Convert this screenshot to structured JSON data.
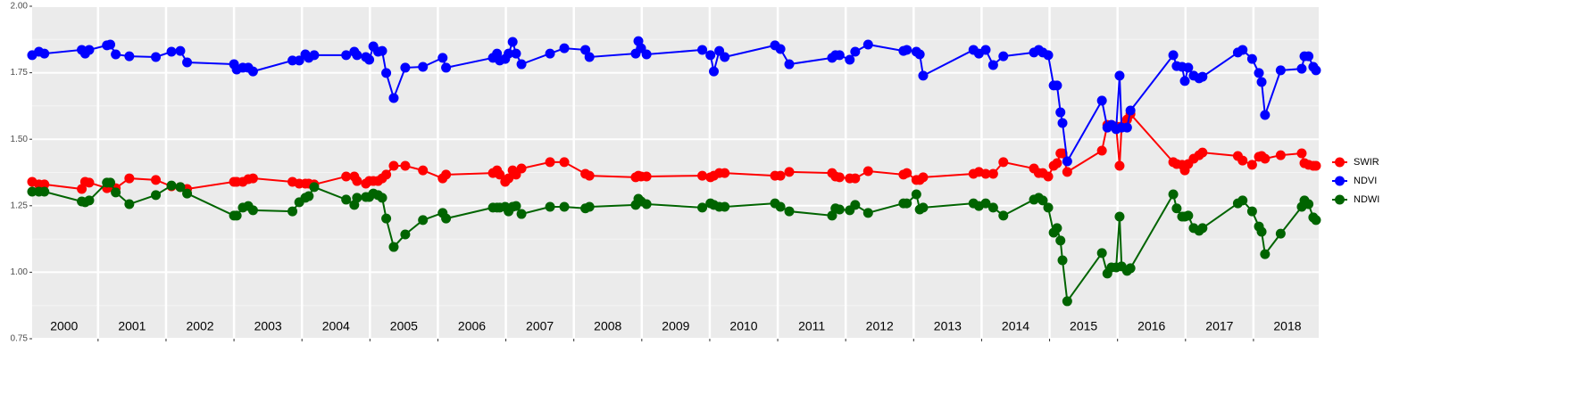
{
  "chart_data": {
    "type": "line",
    "x": [
      2000.03,
      2000.13,
      2000.21,
      2000.76,
      2000.81,
      2000.87,
      2001.13,
      2001.18,
      2001.26,
      2001.46,
      2001.85,
      2002.08,
      2002.21,
      2002.31,
      2003.0,
      2003.04,
      2003.13,
      2003.21,
      2003.28,
      2003.86,
      2003.96,
      2004.05,
      2004.1,
      2004.18,
      2004.65,
      2004.77,
      2004.81,
      2004.94,
      2004.99,
      2005.05,
      2005.12,
      2005.18,
      2005.24,
      2005.35,
      2005.52,
      2005.78,
      2006.07,
      2006.12,
      2006.81,
      2006.87,
      2006.91,
      2006.99,
      2007.04,
      2007.1,
      2007.15,
      2007.23,
      2007.65,
      2007.86,
      2008.17,
      2008.23,
      2008.91,
      2008.95,
      2008.99,
      2009.07,
      2009.89,
      2010.01,
      2010.06,
      2010.14,
      2010.22,
      2010.96,
      2011.04,
      2011.17,
      2011.8,
      2011.85,
      2011.91,
      2012.06,
      2012.14,
      2012.33,
      2012.85,
      2012.9,
      2013.04,
      2013.09,
      2013.14,
      2013.88,
      2013.96,
      2014.06,
      2014.17,
      2014.32,
      2014.77,
      2014.84,
      2014.9,
      2014.98,
      2015.06,
      2015.11,
      2015.16,
      2015.19,
      2015.26,
      2015.77,
      2015.85,
      2015.91,
      2015.98,
      2016.03,
      2016.06,
      2016.14,
      2016.19,
      2016.82,
      2016.87,
      2016.95,
      2016.99,
      2017.04,
      2017.12,
      2017.2,
      2017.25,
      2017.77,
      2017.84,
      2017.98,
      2018.08,
      2018.12,
      2018.17,
      2018.4,
      2018.71,
      2018.75,
      2018.81,
      2018.88,
      2018.92
    ],
    "series": [
      {
        "name": "SWIR",
        "color": "#ff0000",
        "values": [
          1.34,
          1.33,
          1.33,
          1.313,
          1.34,
          1.337,
          1.316,
          1.32,
          1.316,
          1.353,
          1.347,
          1.323,
          1.32,
          1.313,
          1.34,
          1.34,
          1.34,
          1.35,
          1.353,
          1.34,
          1.333,
          1.333,
          1.333,
          1.33,
          1.36,
          1.36,
          1.343,
          1.333,
          1.343,
          1.343,
          1.343,
          1.353,
          1.367,
          1.4,
          1.4,
          1.383,
          1.353,
          1.367,
          1.373,
          1.383,
          1.367,
          1.34,
          1.353,
          1.383,
          1.367,
          1.39,
          1.414,
          1.414,
          1.37,
          1.363,
          1.357,
          1.363,
          1.36,
          1.36,
          1.363,
          1.357,
          1.363,
          1.373,
          1.373,
          1.363,
          1.363,
          1.377,
          1.373,
          1.36,
          1.357,
          1.353,
          1.353,
          1.38,
          1.367,
          1.373,
          1.347,
          1.347,
          1.357,
          1.37,
          1.377,
          1.37,
          1.37,
          1.414,
          1.39,
          1.373,
          1.373,
          1.36,
          1.4,
          1.41,
          1.447,
          1.447,
          1.377,
          1.457,
          1.554,
          1.554,
          1.548,
          1.4,
          1.548,
          1.574,
          1.595,
          1.414,
          1.407,
          1.404,
          1.383,
          1.407,
          1.427,
          1.44,
          1.45,
          1.437,
          1.42,
          1.404,
          1.434,
          1.437,
          1.427,
          1.44,
          1.447,
          1.41,
          1.404,
          1.4,
          1.4
        ]
      },
      {
        "name": "NDVI",
        "color": "#0000ff",
        "values": [
          1.816,
          1.829,
          1.822,
          1.836,
          1.822,
          1.836,
          1.853,
          1.856,
          1.819,
          1.812,
          1.809,
          1.829,
          1.832,
          1.789,
          1.782,
          1.762,
          1.769,
          1.769,
          1.755,
          1.796,
          1.796,
          1.819,
          1.806,
          1.816,
          1.816,
          1.829,
          1.816,
          1.809,
          1.799,
          1.849,
          1.829,
          1.832,
          1.749,
          1.655,
          1.769,
          1.772,
          1.806,
          1.769,
          1.806,
          1.822,
          1.796,
          1.802,
          1.822,
          1.866,
          1.822,
          1.782,
          1.822,
          1.842,
          1.836,
          1.809,
          1.822,
          1.869,
          1.842,
          1.819,
          1.836,
          1.816,
          1.755,
          1.832,
          1.809,
          1.853,
          1.839,
          1.782,
          1.806,
          1.816,
          1.816,
          1.799,
          1.829,
          1.856,
          1.832,
          1.836,
          1.829,
          1.819,
          1.739,
          1.836,
          1.822,
          1.836,
          1.779,
          1.812,
          1.826,
          1.836,
          1.826,
          1.816,
          1.702,
          1.702,
          1.601,
          1.561,
          1.417,
          1.645,
          1.544,
          1.554,
          1.538,
          1.739,
          1.544,
          1.544,
          1.608,
          1.816,
          1.775,
          1.772,
          1.719,
          1.769,
          1.739,
          1.729,
          1.735,
          1.826,
          1.836,
          1.802,
          1.749,
          1.715,
          1.591,
          1.759,
          1.765,
          1.812,
          1.812,
          1.772,
          1.759
        ]
      },
      {
        "name": "NDWI",
        "color": "#006400",
        "values": [
          1.303,
          1.303,
          1.303,
          1.266,
          1.263,
          1.27,
          1.337,
          1.337,
          1.3,
          1.256,
          1.29,
          1.326,
          1.32,
          1.296,
          1.213,
          1.213,
          1.243,
          1.249,
          1.233,
          1.229,
          1.263,
          1.28,
          1.286,
          1.32,
          1.273,
          1.253,
          1.28,
          1.283,
          1.283,
          1.296,
          1.29,
          1.28,
          1.202,
          1.095,
          1.142,
          1.196,
          1.223,
          1.202,
          1.243,
          1.243,
          1.243,
          1.246,
          1.229,
          1.246,
          1.249,
          1.219,
          1.246,
          1.246,
          1.24,
          1.246,
          1.253,
          1.276,
          1.266,
          1.256,
          1.243,
          1.259,
          1.253,
          1.246,
          1.246,
          1.259,
          1.246,
          1.229,
          1.213,
          1.24,
          1.236,
          1.233,
          1.253,
          1.223,
          1.259,
          1.259,
          1.293,
          1.236,
          1.243,
          1.259,
          1.249,
          1.259,
          1.243,
          1.213,
          1.273,
          1.28,
          1.27,
          1.243,
          1.149,
          1.166,
          1.119,
          1.045,
          0.891,
          1.072,
          0.995,
          1.018,
          1.018,
          1.209,
          1.022,
          1.005,
          1.015,
          1.293,
          1.24,
          1.209,
          1.209,
          1.213,
          1.166,
          1.156,
          1.166,
          1.259,
          1.27,
          1.229,
          1.172,
          1.152,
          1.068,
          1.145,
          1.246,
          1.27,
          1.256,
          1.206,
          1.196
        ]
      }
    ],
    "xlim": [
      2000.03,
      2018.96
    ],
    "xticks": [
      2001,
      2002,
      2003,
      2004,
      2005,
      2006,
      2007,
      2008,
      2009,
      2010,
      2011,
      2012,
      2013,
      2014,
      2015,
      2016,
      2017,
      2018
    ],
    "ylim": [
      0.75,
      2.0
    ],
    "yticks": [
      0.75,
      {
        "value": 1.0,
        "label": "1.00"
      },
      1.25,
      {
        "value": 1.5,
        "label": "1.50"
      },
      1.75,
      {
        "value": 2.0,
        "label": "2.00"
      }
    ],
    "annotations": [
      {
        "x": 2000.5,
        "text": "2000"
      },
      {
        "x": 2001.5,
        "text": "2001"
      },
      {
        "x": 2002.5,
        "text": "2002"
      },
      {
        "x": 2003.5,
        "text": "2003"
      },
      {
        "x": 2004.5,
        "text": "2004"
      },
      {
        "x": 2005.5,
        "text": "2005"
      },
      {
        "x": 2006.5,
        "text": "2006"
      },
      {
        "x": 2007.5,
        "text": "2007"
      },
      {
        "x": 2008.5,
        "text": "2008"
      },
      {
        "x": 2009.5,
        "text": "2009"
      },
      {
        "x": 2010.5,
        "text": "2010"
      },
      {
        "x": 2011.5,
        "text": "2011"
      },
      {
        "x": 2012.5,
        "text": "2012"
      },
      {
        "x": 2013.5,
        "text": "2013"
      },
      {
        "x": 2014.5,
        "text": "2014"
      },
      {
        "x": 2015.5,
        "text": "2015"
      },
      {
        "x": 2016.5,
        "text": "2016"
      },
      {
        "x": 2017.5,
        "text": "2017"
      },
      {
        "x": 2018.5,
        "text": "2018"
      }
    ],
    "grid": true,
    "legend": "right"
  }
}
